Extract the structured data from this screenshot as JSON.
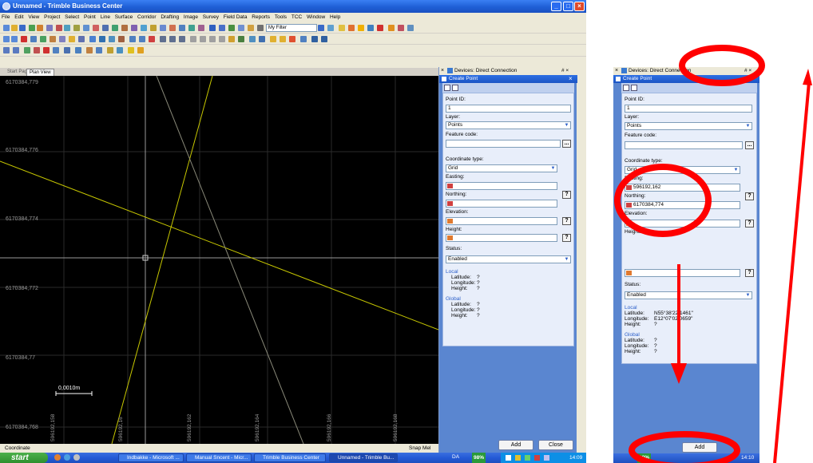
{
  "window": {
    "title": "Unnamed - Trimble Business Center"
  },
  "menu": [
    "File",
    "Edit",
    "View",
    "Project",
    "Select",
    "Point",
    "Line",
    "Surface",
    "Corridor",
    "Drafting",
    "Image",
    "Survey",
    "Field Data",
    "Reports",
    "Tools",
    "TCC",
    "Window",
    "Help"
  ],
  "toolbar": {
    "filter_value": "My Filter"
  },
  "tabs": [
    "Start Page",
    "Plan View"
  ],
  "plan": {
    "y_labels": [
      "6170384,779",
      "6170384,776",
      "6170384,774",
      "6170384,772",
      "6170384,77",
      "6170384,768"
    ],
    "x_labels": [
      "596192,158",
      "596192,16",
      "596192,162",
      "596192,164",
      "596192,166",
      "596192,168"
    ],
    "scale_label": "0,0010m"
  },
  "status": {
    "left": "Coordinate",
    "right": "Snap Mel"
  },
  "panel": {
    "devices_title": "Devices: Direct Connection",
    "create_point_title": "Create Point",
    "pin": "# ×",
    "close": "×",
    "point_id_label": "Point ID:",
    "point_id_value": "1",
    "layer_label": "Layer:",
    "layer_value": "Points",
    "feature_code_label": "Feature code:",
    "ellipsis": "...",
    "coord_type_label": "Coordinate type:",
    "coord_type_value": "Grid",
    "easting_label": "Easting:",
    "easting_value": "",
    "northing_label": "Northing:",
    "northing_value": "",
    "elevation_label": "Elevation:",
    "height_label": "Height:",
    "q": "?",
    "status_label": "Status:",
    "status_value": "Enabled",
    "local_title": "Local",
    "global_title": "Global",
    "lat_label": "Latitude:",
    "lon_label": "Longitude:",
    "h_label": "Height:",
    "local_lat": "?",
    "local_lon": "?",
    "local_h": "?",
    "global_lat": "?",
    "global_lon": "?",
    "global_h": "?",
    "add_label": "Add",
    "close_label": "Close"
  },
  "zoom_panel": {
    "easting_value": "596192,162",
    "northing_value": "6170384,774",
    "local_lat": "N55°38'22.1461\"",
    "local_lon": "E12°07'02.0659\"",
    "local_h": "?",
    "add_label": "Add",
    "tray_percent": "98%",
    "tray_time": "14:10"
  },
  "taskbar": {
    "start": "start",
    "tasks": [
      "Indbakke - Microsoft ...",
      "Manual Sncent - Micr...",
      "Trimble Business Center",
      "Unnamed - Trimble Bu..."
    ],
    "lang": "DA",
    "percent": "98%",
    "time": "14:09"
  },
  "colors": {
    "annotation": "#ff0000",
    "plan_bg": "#000000",
    "yellow_line": "#c8c800",
    "panel_blue": "#5a86d0"
  }
}
